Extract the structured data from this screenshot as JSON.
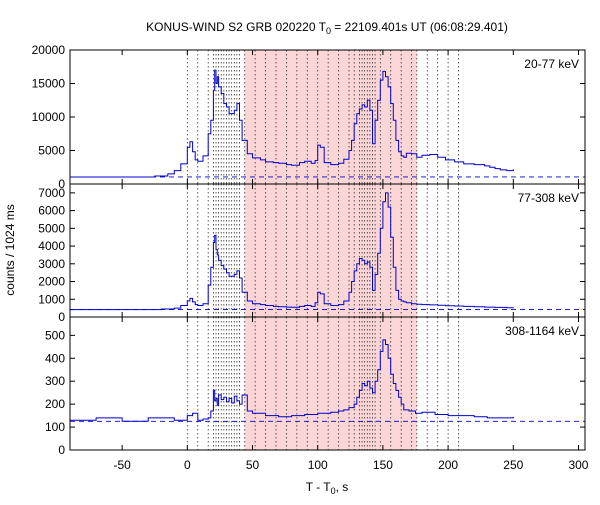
{
  "chart_data": {
    "type": "line",
    "title_main": "KONUS-WIND S2 GRB 020220 T",
    "title_sub": "0",
    "title_rest": " = 22109.401s UT (06:08:29.401)",
    "ylabel": "counts / 1024 ms",
    "xlabel_main": "T - T",
    "xlabel_sub": "0",
    "xlabel_rest": ", s",
    "xlim": [
      -90,
      305
    ],
    "xticks": [
      -50,
      0,
      50,
      100,
      150,
      200,
      250,
      300
    ],
    "highlight_interval": [
      44,
      176
    ],
    "dotted_markers": [
      0,
      8,
      16,
      20,
      22,
      24,
      26,
      28,
      30,
      32,
      34,
      36,
      38,
      40,
      44,
      52,
      60,
      68,
      76,
      84,
      92,
      100,
      108,
      116,
      124,
      128,
      132,
      134,
      136,
      138,
      140,
      142,
      144,
      148,
      156,
      164,
      172,
      176,
      184,
      192,
      200,
      208
    ],
    "line_color": "#0000cc",
    "highlight_color": "#fcd6d6",
    "panels": [
      {
        "label": "20-77 keV",
        "ylim": [
          0,
          20000
        ],
        "yticks": [
          0,
          5000,
          10000,
          15000,
          20000
        ],
        "background": 1050,
        "x": [
          -90,
          -25,
          -15,
          -10,
          -5,
          0,
          2,
          4,
          6,
          8,
          12,
          16,
          18,
          20,
          21,
          22,
          23,
          24,
          26,
          28,
          30,
          32,
          36,
          38,
          40,
          42,
          46,
          50,
          56,
          60,
          66,
          70,
          76,
          80,
          86,
          90,
          95,
          98,
          100,
          102,
          105,
          110,
          116,
          120,
          124,
          126,
          128,
          130,
          132,
          134,
          136,
          138,
          140,
          142,
          144,
          146,
          148,
          150,
          152,
          154,
          156,
          158,
          160,
          162,
          164,
          166,
          168,
          172,
          176,
          180,
          186,
          192,
          198,
          205,
          212,
          220,
          228,
          232,
          236,
          240,
          245,
          250
        ],
        "y": [
          1050,
          1200,
          1500,
          2000,
          3000,
          5500,
          6300,
          4800,
          3600,
          3400,
          4200,
          7500,
          9500,
          14000,
          17000,
          15000,
          16000,
          14500,
          13500,
          12000,
          11500,
          10500,
          11000,
          12000,
          9500,
          6500,
          4500,
          3900,
          3600,
          3300,
          3200,
          3100,
          2900,
          2800,
          3200,
          3400,
          3100,
          3500,
          5800,
          5500,
          3200,
          2900,
          3100,
          3700,
          5000,
          6500,
          9000,
          10500,
          11200,
          11800,
          11500,
          12500,
          11000,
          6000,
          9500,
          12500,
          15500,
          16800,
          16000,
          14500,
          12000,
          9500,
          6500,
          4800,
          4200,
          4000,
          4600,
          4500,
          4000,
          4300,
          4400,
          4000,
          3600,
          3300,
          3000,
          2900,
          2700,
          2500,
          2300,
          2100,
          2000,
          2200
        ]
      },
      {
        "label": "77-308 keV",
        "ylim": [
          0,
          7500
        ],
        "yticks": [
          0,
          1000,
          2000,
          3000,
          4000,
          5000,
          6000,
          7000
        ],
        "background": 420,
        "x": [
          -90,
          -20,
          -10,
          -5,
          0,
          2,
          4,
          6,
          8,
          12,
          16,
          18,
          20,
          21,
          22,
          23,
          24,
          26,
          28,
          30,
          32,
          36,
          38,
          40,
          42,
          46,
          50,
          56,
          60,
          66,
          70,
          76,
          80,
          86,
          90,
          95,
          98,
          100,
          102,
          105,
          110,
          116,
          120,
          124,
          126,
          128,
          130,
          132,
          134,
          136,
          138,
          140,
          142,
          144,
          146,
          148,
          150,
          152,
          154,
          156,
          158,
          160,
          162,
          164,
          166,
          168,
          172,
          176,
          180,
          186,
          192,
          198,
          205,
          212,
          220,
          228,
          236,
          245,
          250
        ],
        "y": [
          420,
          450,
          500,
          650,
          900,
          1050,
          850,
          700,
          650,
          750,
          1800,
          2800,
          4200,
          4600,
          3800,
          3500,
          3200,
          2900,
          2700,
          2500,
          2300,
          2400,
          2600,
          2200,
          1400,
          900,
          750,
          700,
          650,
          600,
          580,
          560,
          550,
          600,
          650,
          600,
          800,
          1400,
          1300,
          750,
          650,
          700,
          900,
          1400,
          2000,
          2600,
          3000,
          3300,
          3200,
          3000,
          3100,
          2800,
          1500,
          2400,
          3600,
          5000,
          6500,
          7000,
          6200,
          4500,
          2800,
          1500,
          1000,
          900,
          850,
          800,
          750,
          720,
          700,
          680,
          660,
          640,
          620,
          600,
          580,
          560,
          540,
          520,
          500
        ]
      },
      {
        "label": "308-1164 keV",
        "ylim": [
          0,
          580
        ],
        "yticks": [
          0,
          100,
          200,
          300,
          400,
          500
        ],
        "background": 125,
        "x": [
          -90,
          -70,
          -50,
          -30,
          -10,
          0,
          4,
          8,
          12,
          16,
          18,
          20,
          21,
          22,
          23,
          24,
          26,
          28,
          30,
          32,
          34,
          36,
          38,
          40,
          42,
          46,
          50,
          60,
          70,
          80,
          90,
          100,
          110,
          116,
          120,
          124,
          128,
          130,
          132,
          134,
          136,
          138,
          140,
          142,
          144,
          146,
          148,
          150,
          152,
          154,
          156,
          158,
          160,
          162,
          164,
          166,
          170,
          175,
          180,
          190,
          200,
          210,
          220,
          230,
          240,
          250
        ],
        "y": [
          130,
          140,
          125,
          140,
          130,
          150,
          160,
          130,
          135,
          140,
          170,
          260,
          215,
          225,
          195,
          240,
          220,
          230,
          210,
          225,
          205,
          235,
          215,
          200,
          240,
          170,
          160,
          150,
          145,
          150,
          155,
          160,
          165,
          170,
          175,
          185,
          200,
          230,
          260,
          290,
          280,
          300,
          270,
          250,
          300,
          350,
          430,
          480,
          460,
          400,
          330,
          290,
          260,
          230,
          200,
          175,
          170,
          160,
          165,
          155,
          150,
          150,
          145,
          140,
          140,
          145
        ]
      }
    ]
  }
}
